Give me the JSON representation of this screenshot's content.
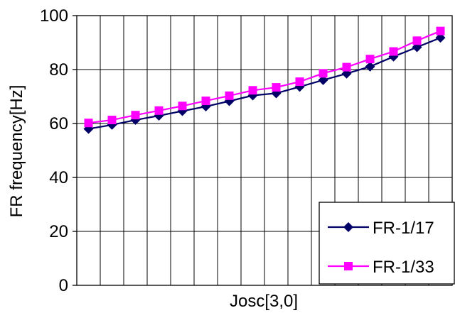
{
  "chart_data": {
    "type": "line",
    "title": "",
    "xlabel": "Josc[3,0]",
    "ylabel": "FR frequency[Hz]",
    "ylim": [
      0,
      100
    ],
    "yticks": [
      0,
      20,
      40,
      60,
      80,
      100
    ],
    "x": [
      1,
      2,
      3,
      4,
      5,
      6,
      7,
      8,
      9,
      10,
      11,
      12,
      13,
      14,
      15,
      16
    ],
    "x_tick_labels_shown": false,
    "grid": true,
    "legend_position": "bottom-right",
    "series": [
      {
        "name": "FR-1/17",
        "marker": "diamond",
        "color": "#000066",
        "values": [
          58.0,
          59.5,
          61.3,
          62.9,
          64.6,
          66.3,
          68.3,
          70.4,
          71.2,
          73.6,
          76.1,
          78.5,
          81.1,
          84.8,
          88.3,
          91.8
        ]
      },
      {
        "name": "FR-1/33",
        "marker": "square",
        "color": "#FF00FF",
        "values": [
          60.2,
          61.3,
          63.1,
          64.8,
          66.5,
          68.4,
          70.3,
          72.3,
          73.4,
          75.5,
          78.6,
          80.9,
          83.9,
          86.7,
          90.7,
          94.3
        ]
      }
    ]
  }
}
